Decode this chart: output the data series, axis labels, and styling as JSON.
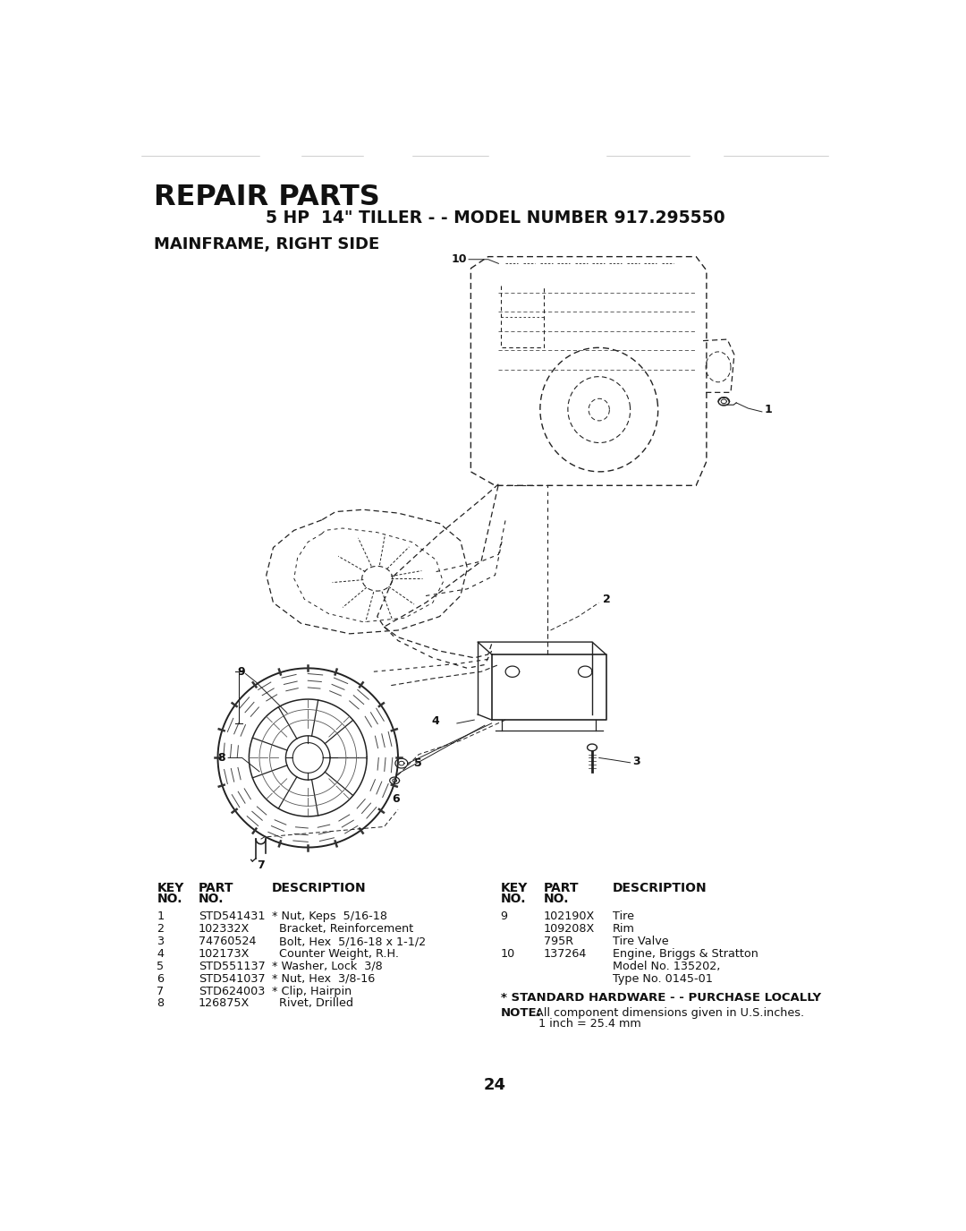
{
  "title_line1": "REPAIR PARTS",
  "title_line2": "5 HP  14\" TILLER - - MODEL NUMBER 917.295550",
  "section_title": "MAINFRAME, RIGHT SIDE",
  "bg_color": "#ffffff",
  "page_number": "24",
  "left_parts": [
    [
      "1",
      "STD541431",
      "* Nut, Keps  5/16-18"
    ],
    [
      "2",
      "102332X",
      "  Bracket, Reinforcement"
    ],
    [
      "3",
      "74760524",
      "  Bolt, Hex  5/16-18 x 1-1/2"
    ],
    [
      "4",
      "102173X",
      "  Counter Weight, R.H."
    ],
    [
      "5",
      "STD551137",
      "* Washer, Lock  3/8"
    ],
    [
      "6",
      "STD541037",
      "* Nut, Hex  3/8-16"
    ],
    [
      "7",
      "STD624003",
      "* Clip, Hairpin"
    ],
    [
      "8",
      "126875X",
      "  Rivet, Drilled"
    ]
  ],
  "right_parts": [
    [
      "9",
      "102190X",
      "Tire",
      false
    ],
    [
      "",
      "109208X",
      "Rim",
      false
    ],
    [
      "",
      "795R",
      "Tire Valve",
      false
    ],
    [
      "10",
      "137264",
      "Engine, Briggs & Stratton",
      false
    ],
    [
      "",
      "",
      "Model No. 135202,",
      false
    ],
    [
      "",
      "",
      "Type No. 0145-01",
      false
    ]
  ],
  "footnote1": "* STANDARD HARDWARE - - PURCHASE LOCALLY",
  "footnote2_bold": "NOTE:",
  "footnote2_rest1": "  All component dimensions given in U.S.inches.",
  "footnote2_rest2": "1 inch = 25.4 mm"
}
